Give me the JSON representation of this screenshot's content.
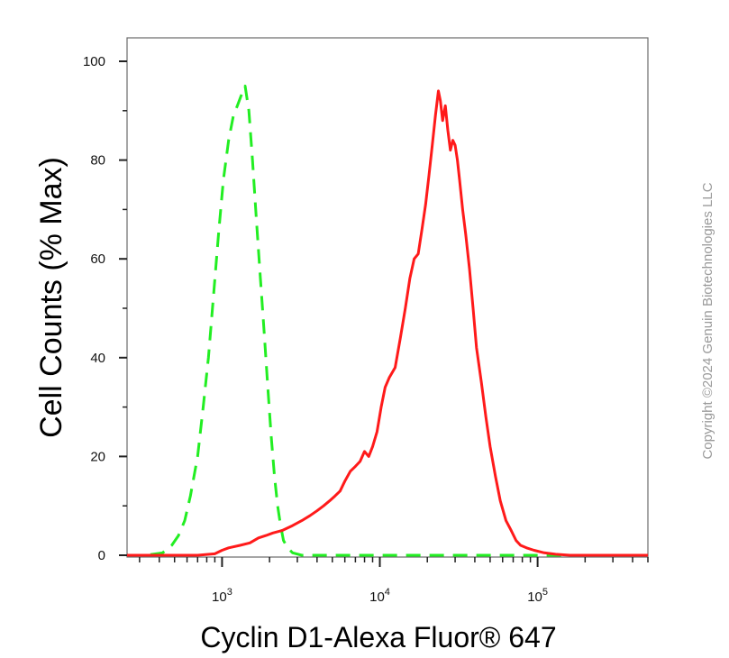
{
  "chart_data": {
    "type": "line",
    "xlabel": "Cyclin D1-Alexa Fluor® 647",
    "ylabel": "Cell Counts (% Max)",
    "x_scale": "log",
    "xlim": [
      250,
      500000
    ],
    "ylim": [
      0,
      105
    ],
    "x_ticks": [
      {
        "value": 1000,
        "base": "10",
        "exp": "3"
      },
      {
        "value": 10000,
        "base": "10",
        "exp": "4"
      },
      {
        "value": 100000,
        "base": "10",
        "exp": "5"
      }
    ],
    "y_ticks": [
      {
        "value": 0,
        "label": "0"
      },
      {
        "value": 20,
        "label": "20"
      },
      {
        "value": 40,
        "label": "40"
      },
      {
        "value": 60,
        "label": "60"
      },
      {
        "value": 80,
        "label": "80"
      },
      {
        "value": 100,
        "label": "100"
      }
    ],
    "grid": false,
    "series": [
      {
        "color": "#22ee22",
        "style": "dashed",
        "x": [
          250,
          330,
          420,
          480,
          530,
          580,
          630,
          700,
          760,
          820,
          880,
          950,
          1020,
          1100,
          1180,
          1250,
          1320,
          1400,
          1480,
          1560,
          1650,
          1750,
          1850,
          1950,
          2050,
          2150,
          2250,
          2350,
          2450,
          2600,
          2800,
          3200,
          4000,
          10000,
          100000,
          500000
        ],
        "y": [
          0,
          0,
          0.5,
          2,
          4,
          7,
          12,
          20,
          30,
          40,
          52,
          65,
          76,
          84,
          89,
          91,
          93,
          95,
          90,
          80,
          68,
          56,
          45,
          34,
          24,
          16,
          10,
          6,
          3,
          1.5,
          0.5,
          0,
          0,
          0,
          0,
          0
        ]
      },
      {
        "color": "#ff1a1a",
        "style": "solid",
        "x": [
          250,
          700,
          900,
          1000,
          1100,
          1300,
          1500,
          1700,
          1900,
          2100,
          2400,
          2800,
          3200,
          3600,
          4000,
          4400,
          4800,
          5200,
          5600,
          6000,
          6500,
          7000,
          7500,
          8000,
          8500,
          9000,
          9600,
          10200,
          10800,
          11500,
          12500,
          13500,
          14500,
          15500,
          16500,
          17500,
          18500,
          19500,
          20500,
          21500,
          22500,
          23500,
          24200,
          25000,
          26000,
          27000,
          28000,
          29000,
          30000,
          31000,
          32000,
          33500,
          35000,
          37000,
          39000,
          41000,
          44000,
          47000,
          50000,
          54000,
          58000,
          63000,
          68000,
          73000,
          78000,
          85000,
          95000,
          110000,
          130000,
          160000,
          200000,
          300000,
          500000
        ],
        "y": [
          0,
          0,
          0.3,
          1,
          1.5,
          2,
          2.5,
          3.5,
          4,
          4.5,
          5,
          6,
          7,
          8,
          9,
          10,
          11,
          12,
          13,
          15,
          17,
          18,
          19,
          21,
          20,
          22,
          25,
          30,
          34,
          36,
          38,
          44,
          50,
          56,
          60,
          61,
          66,
          71,
          77,
          83,
          89,
          94,
          92,
          88,
          91,
          86,
          82,
          84,
          83,
          80,
          76,
          70,
          65,
          58,
          50,
          42,
          35,
          28,
          22,
          16,
          11,
          7,
          5,
          3,
          2,
          1.5,
          1,
          0.5,
          0.2,
          0,
          0,
          0,
          0
        ]
      }
    ]
  },
  "copyright": "Copyright ©2024 Genuin Biotechnologies LLC"
}
